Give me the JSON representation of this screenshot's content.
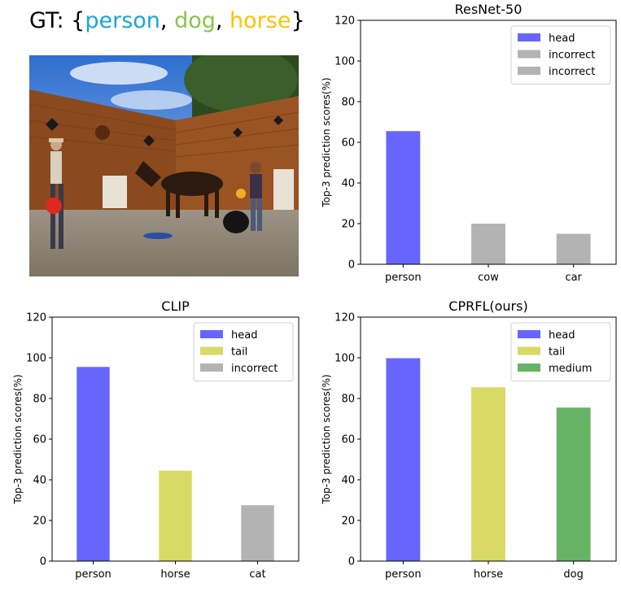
{
  "caption": {
    "prefix": "GT: {",
    "items": [
      {
        "label": "person",
        "color": "#1aa7d8"
      },
      {
        "label": "dog",
        "color": "#8bc34a"
      },
      {
        "label": "horse",
        "color": "#ffc107"
      }
    ],
    "separator": ", ",
    "suffix": "}"
  },
  "photo": {
    "description_icon": "photo-of-horse-people-dog"
  },
  "chart_data": [
    {
      "type": "bar",
      "title": "ResNet-50",
      "ylabel": "Top-3 prediction scores(%)",
      "xlabel": "",
      "categories": [
        "person",
        "cow",
        "car"
      ],
      "values": [
        65.5,
        20,
        15
      ],
      "bar_colors": [
        "#6666ff",
        "#b3b3b3",
        "#b3b3b3"
      ],
      "ylim": [
        0,
        120
      ],
      "yticks": [
        0,
        20,
        40,
        60,
        80,
        100,
        120
      ],
      "legend": {
        "placement": "top-right",
        "entries": [
          {
            "label": "head",
            "color": "#6666ff"
          },
          {
            "label": "incorrect",
            "color": "#b3b3b3"
          },
          {
            "label": "incorrect",
            "color": "#b3b3b3"
          }
        ]
      },
      "grid": false
    },
    {
      "type": "bar",
      "title": "CLIP",
      "ylabel": "Top-3 prediction scores(%)",
      "xlabel": "",
      "categories": [
        "person",
        "horse",
        "cat"
      ],
      "values": [
        95.5,
        44.5,
        27.5
      ],
      "bar_colors": [
        "#6666ff",
        "#d9d966",
        "#b3b3b3"
      ],
      "ylim": [
        0,
        120
      ],
      "yticks": [
        0,
        20,
        40,
        60,
        80,
        100,
        120
      ],
      "legend": {
        "placement": "top-right",
        "entries": [
          {
            "label": "head",
            "color": "#6666ff"
          },
          {
            "label": "tail",
            "color": "#d9d966"
          },
          {
            "label": "incorrect",
            "color": "#b3b3b3"
          }
        ]
      },
      "grid": false
    },
    {
      "type": "bar",
      "title": "CPRFL(ours)",
      "ylabel": "Top-3 prediction scores(%)",
      "xlabel": "",
      "categories": [
        "person",
        "horse",
        "dog"
      ],
      "values": [
        99.8,
        85.5,
        75.5
      ],
      "bar_colors": [
        "#6666ff",
        "#d9d966",
        "#66b366"
      ],
      "ylim": [
        0,
        120
      ],
      "yticks": [
        0,
        20,
        40,
        60,
        80,
        100,
        120
      ],
      "legend": {
        "placement": "top-right",
        "entries": [
          {
            "label": "head",
            "color": "#6666ff"
          },
          {
            "label": "tail",
            "color": "#d9d966"
          },
          {
            "label": "medium",
            "color": "#66b366"
          }
        ]
      },
      "grid": false
    }
  ]
}
